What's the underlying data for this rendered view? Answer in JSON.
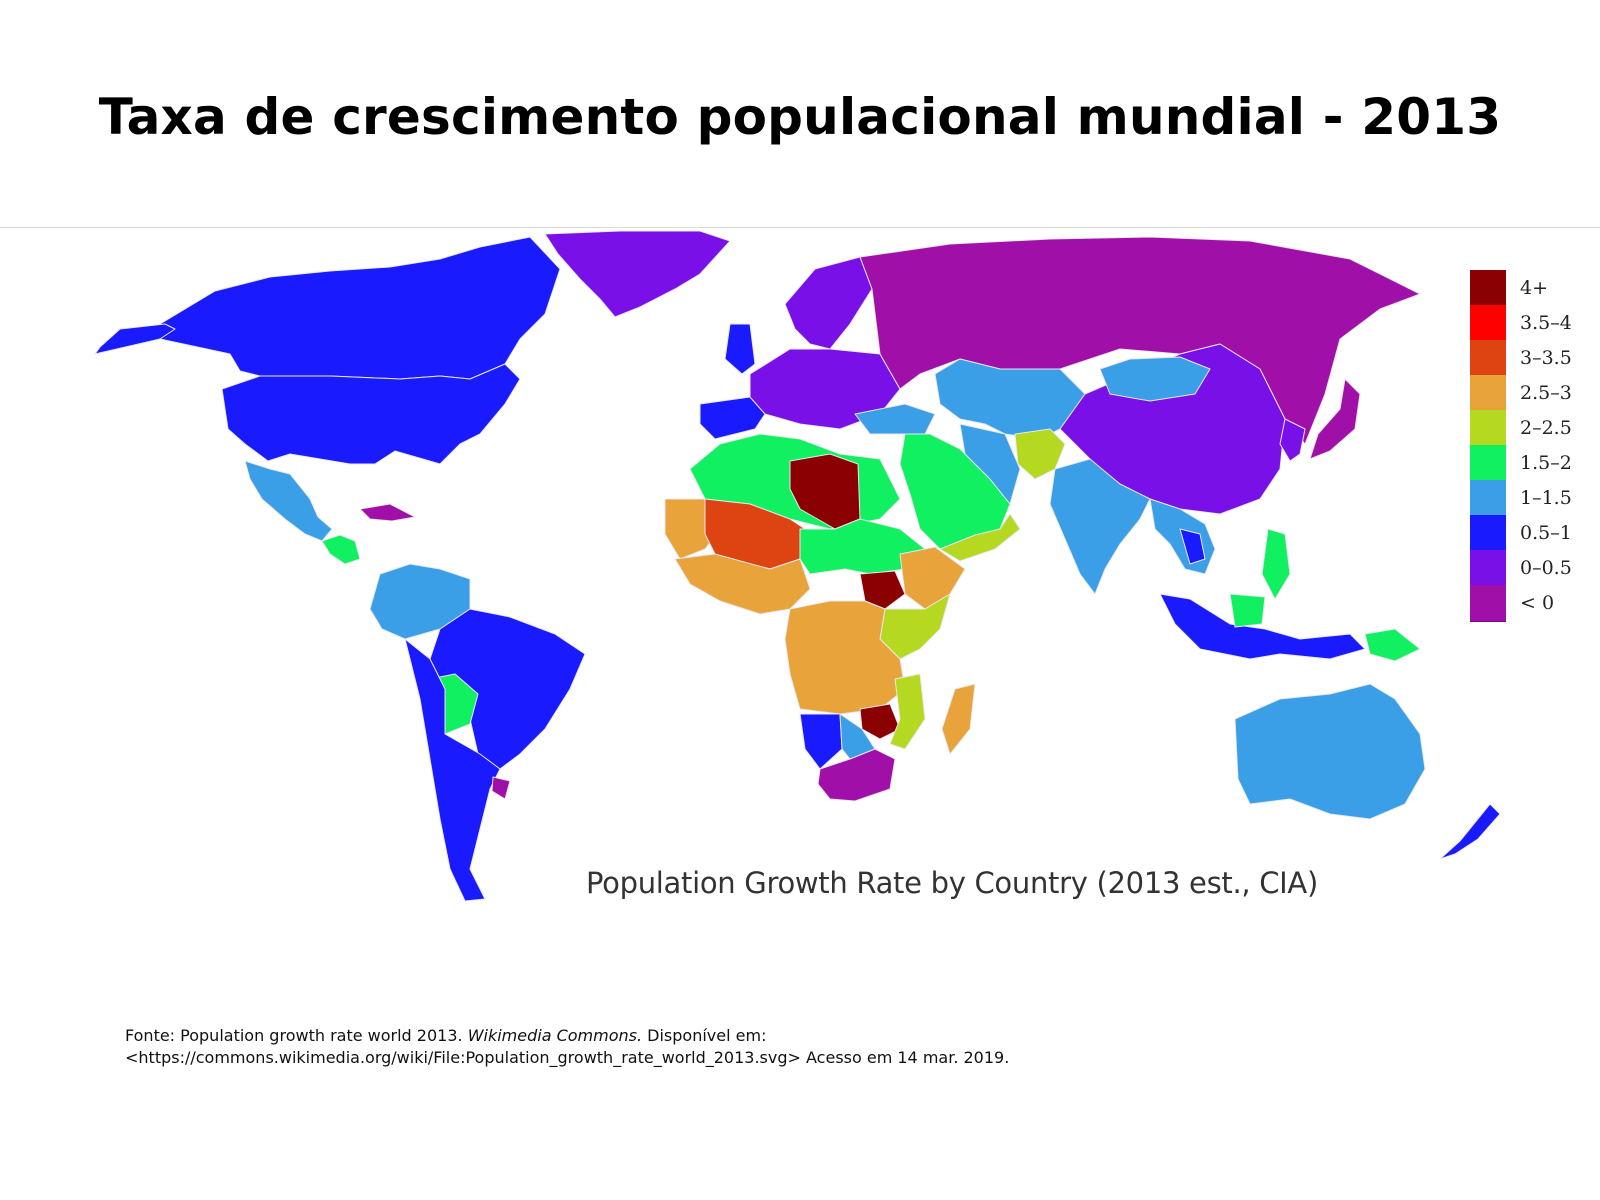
{
  "title": "Taxa de crescimento populacional mundial - 2013",
  "map": {
    "caption": "Population Growth Rate by Country (2013 est., CIA)",
    "ocean_color": "#ffffff",
    "border_color": "#e8e8f0",
    "legend": [
      {
        "label": "4+",
        "color": "#8b0000"
      },
      {
        "label": "3.5–4",
        "color": "#ff0000"
      },
      {
        "label": "3–3.5",
        "color": "#dd4411"
      },
      {
        "label": "2.5–3",
        "color": "#e8a33a"
      },
      {
        "label": "2–2.5",
        "color": "#b5d820"
      },
      {
        "label": "1.5–2",
        "color": "#10f060"
      },
      {
        "label": "1–1.5",
        "color": "#3a9fe6"
      },
      {
        "label": "0.5–1",
        "color": "#1a1aff"
      },
      {
        "label": "0–0.5",
        "color": "#7a10e8"
      },
      {
        "label": "< 0",
        "color": "#a010a8"
      }
    ]
  },
  "source": {
    "prefix": "Fonte: Population growth rate world 2013. ",
    "publisher": "Wikimedia Commons.",
    "suffix": " Disponível em:",
    "line2": "<https://commons.wikimedia.org/wiki/File:Population_growth_rate_world_2013.svg> Acesso em 14 mar. 2019."
  }
}
